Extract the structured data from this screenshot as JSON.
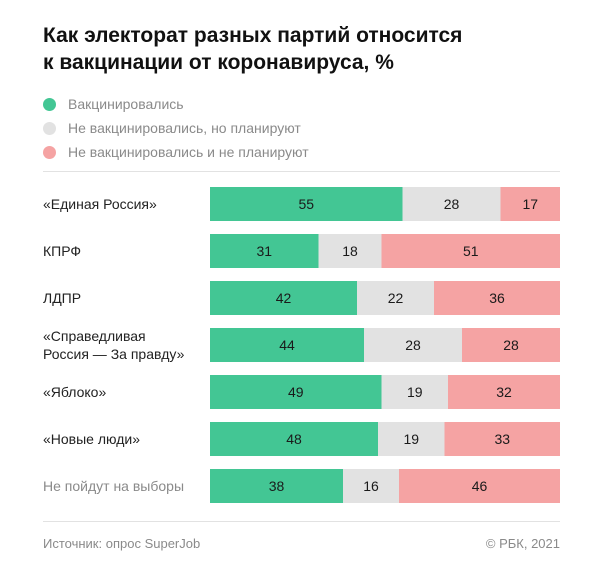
{
  "title_lines": [
    "Как электорат разных партий относится",
    "к вакцинации от коронавируса, %"
  ],
  "colors": {
    "vaccinated": "#43c694",
    "planning": "#e2e2e2",
    "not_planning": "#f5a3a3"
  },
  "legend": [
    {
      "label": "Вакцинировались",
      "color": "#43c694"
    },
    {
      "label": "Не вакцинировались, но планируют",
      "color": "#e2e2e2"
    },
    {
      "label": "Не вакцинировались и не планируют",
      "color": "#f5a3a3"
    }
  ],
  "footer": {
    "source": "Источник:  опрос SuperJob",
    "credit": "© РБК, 2021"
  },
  "chart_data": {
    "type": "bar",
    "orientation": "horizontal",
    "stacked": true,
    "title": "Как электорат разных партий относится к вакцинации от коронавируса, %",
    "categories": [
      "«Единая Россия»",
      "КПРФ",
      "ЛДПР",
      "«Справедливая Россия — За правду»",
      "«Яблоко»",
      "«Новые люди»",
      "Не пойдут на выборы"
    ],
    "category_lines": [
      [
        "«Единая Россия»"
      ],
      [
        "КПРФ"
      ],
      [
        "ЛДПР"
      ],
      [
        "«Справедливая",
        "Россия — За правду»"
      ],
      [
        "«Яблоко»"
      ],
      [
        "«Новые люди»"
      ],
      [
        "Не пойдут на выборы"
      ]
    ],
    "muted_categories": [
      "Не пойдут на выборы"
    ],
    "series": [
      {
        "name": "Вакцинировались",
        "color": "#43c694",
        "values": [
          55,
          31,
          42,
          44,
          49,
          48,
          38
        ]
      },
      {
        "name": "Не вакцинировались, но планируют",
        "color": "#e2e2e2",
        "values": [
          28,
          18,
          22,
          28,
          19,
          19,
          16
        ]
      },
      {
        "name": "Не вакцинировались и не планируют",
        "color": "#f5a3a3",
        "values": [
          17,
          51,
          36,
          28,
          32,
          33,
          46
        ]
      }
    ],
    "xlim": [
      0,
      100
    ],
    "grid": false,
    "legend_position": "top-left",
    "data_labels": true
  }
}
